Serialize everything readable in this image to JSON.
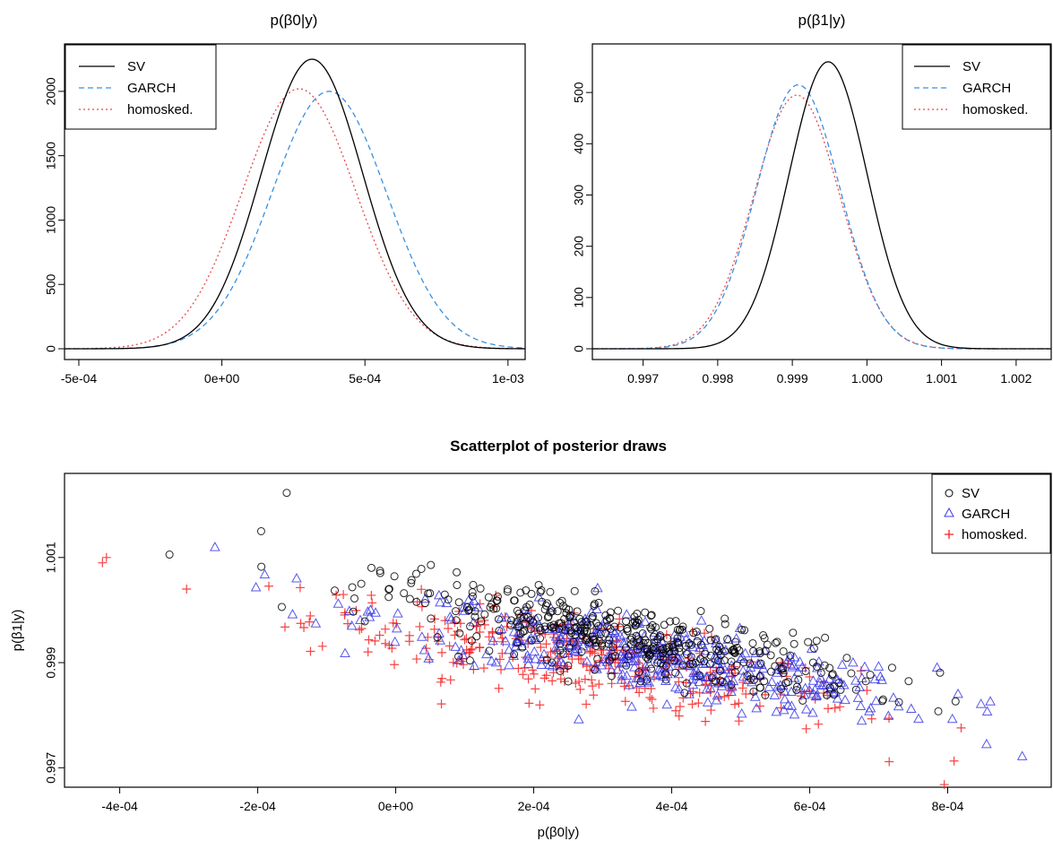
{
  "colors": {
    "sv": "#000000",
    "garch": "#3a8fe0",
    "homosked": "#e8474d",
    "scatter_garch": "#3a3ae8",
    "scatter_homosked": "#f52222"
  },
  "chart_data": [
    {
      "type": "line",
      "title": "p(β0|y)",
      "xlabel": "",
      "ylabel": "",
      "xlim": [
        -0.00055,
        0.00106
      ],
      "ylim": [
        0,
        2250
      ],
      "xticks": [
        -0.0005,
        0,
        0.0005,
        0.001
      ],
      "xtick_labels": [
        "-5e-04",
        "0e+00",
        "5e-04",
        "1e-03"
      ],
      "yticks": [
        0,
        500,
        1000,
        1500,
        2000
      ],
      "ytick_labels": [
        "0",
        "500",
        "1000",
        "1500",
        "2000"
      ],
      "legend_position": "top-left",
      "series": [
        {
          "name": "SV",
          "style": "solid",
          "mean": 0.000315,
          "sd": 0.000177,
          "peak": 2250
        },
        {
          "name": "GARCH",
          "style": "dashed",
          "mean": 0.000375,
          "sd": 0.0002,
          "peak": 2000
        },
        {
          "name": "homosked.",
          "style": "dotted",
          "mean": 0.00027,
          "sd": 0.000198,
          "peak": 2020
        }
      ]
    },
    {
      "type": "line",
      "title": "p(β1|y)",
      "xlabel": "",
      "ylabel": "",
      "xlim": [
        0.99632,
        1.00247
      ],
      "ylim": [
        0,
        565
      ],
      "xticks": [
        0.997,
        0.998,
        0.999,
        1.0,
        1.001,
        1.002
      ],
      "xtick_labels": [
        "0.997",
        "0.998",
        "0.999",
        "1.000",
        "1.001",
        "1.002"
      ],
      "yticks": [
        0,
        100,
        200,
        300,
        400,
        500
      ],
      "ytick_labels": [
        "0",
        "100",
        "200",
        "300",
        "400",
        "500"
      ],
      "legend_position": "top-right",
      "series": [
        {
          "name": "SV",
          "style": "solid",
          "mean": 0.99948,
          "sd": 0.000525,
          "peak": 560
        },
        {
          "name": "GARCH",
          "style": "dashed",
          "mean": 0.99908,
          "sd": 0.00056,
          "peak": 515
        },
        {
          "name": "homosked.",
          "style": "dotted",
          "mean": 0.99906,
          "sd": 0.000575,
          "peak": 495
        }
      ]
    },
    {
      "type": "scatter",
      "title": "Scatterplot of posterior draws",
      "xlabel": "p(β0|y)",
      "ylabel": "p(β1|y)",
      "xlim": [
        -0.00048,
        0.00095
      ],
      "ylim": [
        0.99663,
        1.0026
      ],
      "xticks": [
        -0.0004,
        -0.0002,
        0,
        0.0002,
        0.0004,
        0.0006,
        0.0008
      ],
      "xtick_labels": [
        "-4e-04",
        "-2e-04",
        "0e+00",
        "2e-04",
        "4e-04",
        "6e-04",
        "8e-04"
      ],
      "yticks": [
        0.997,
        0.999,
        1.001
      ],
      "ytick_labels": [
        "0.997",
        "0.999",
        "1.001"
      ],
      "legend_position": "top-right",
      "series": [
        {
          "name": "SV",
          "marker": "circle",
          "count": 420,
          "mean_x": 0.00033,
          "sd_x": 0.000175,
          "mean_y": 0.99948,
          "sd_y": 0.00052,
          "corr": -0.78
        },
        {
          "name": "GARCH",
          "marker": "triangle",
          "count": 420,
          "mean_x": 0.00038,
          "sd_x": 0.0002,
          "mean_y": 0.99908,
          "sd_y": 0.00056,
          "corr": -0.78
        },
        {
          "name": "homosked.",
          "marker": "plus",
          "count": 330,
          "mean_x": 0.00027,
          "sd_x": 0.000198,
          "mean_y": 0.99906,
          "sd_y": 0.000575,
          "corr": -0.75
        }
      ],
      "notable_points": [
        {
          "series": "SV",
          "x": -0.000158,
          "y": 1.00223
        },
        {
          "series": "SV",
          "x": -0.000195,
          "y": 1.0015
        },
        {
          "series": "GARCH",
          "x": -0.000262,
          "y": 1.0012
        },
        {
          "series": "homosked.",
          "x": -0.000425,
          "y": 1.0009
        },
        {
          "series": "GARCH",
          "x": 0.000908,
          "y": 0.99722
        },
        {
          "series": "homosked.",
          "x": 0.000795,
          "y": 0.99668
        }
      ]
    }
  ]
}
